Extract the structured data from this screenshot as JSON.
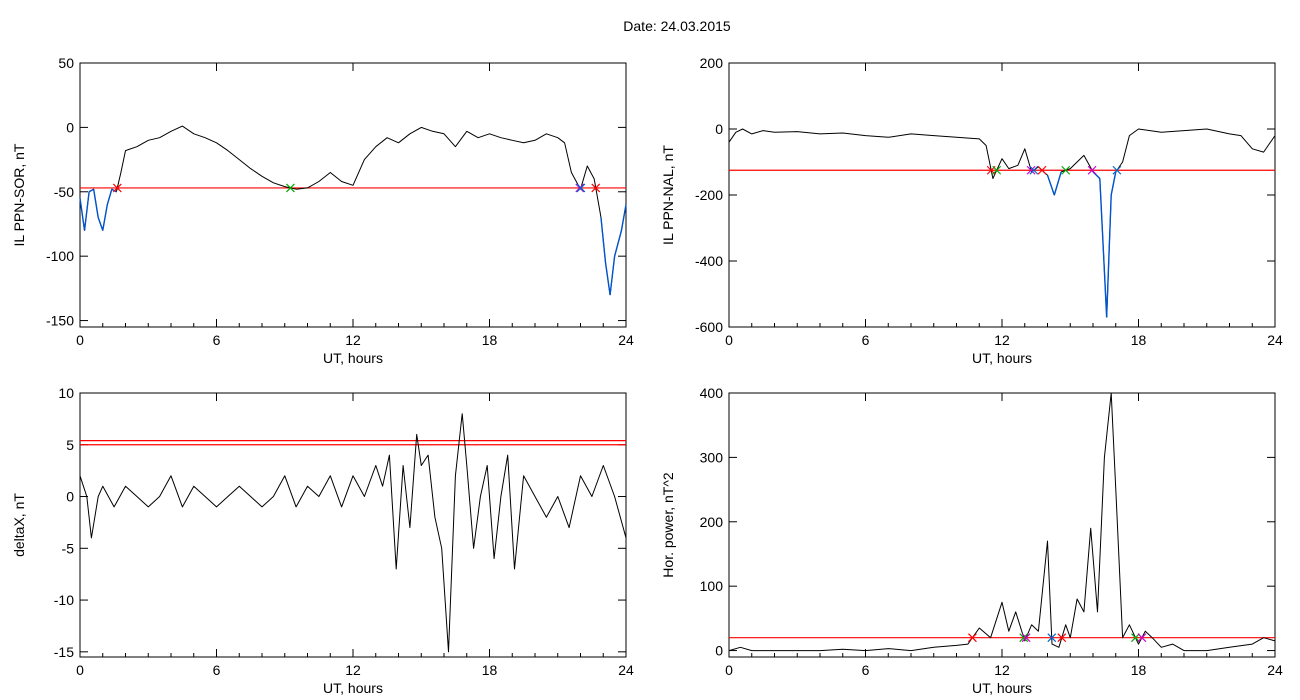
{
  "figure_title": "Date:  24.03.2015",
  "colors": {
    "trace": "#000000",
    "threshold": "#ff0000",
    "event": "#0055cc",
    "marker_red": "#ff0000",
    "marker_green": "#00aa00",
    "marker_magenta": "#cc00cc",
    "marker_blue": "#0066cc"
  },
  "chart_data": [
    {
      "id": "ppn_sor",
      "type": "line",
      "xlabel": "UT, hours",
      "ylabel": "IL PPN-SOR, nT",
      "xlim": [
        0,
        24
      ],
      "ylim": [
        -155,
        50
      ],
      "xticks": [
        "0",
        "6",
        "12",
        "18",
        "24"
      ],
      "yticks": [
        "50",
        "0",
        "-50",
        "-100",
        "-150"
      ],
      "ytick_values": [
        50,
        0,
        -50,
        -100,
        -150
      ],
      "threshold": -47,
      "series": [
        {
          "x": [
            0,
            0.2,
            0.4,
            0.6,
            0.8,
            1.0,
            1.2,
            1.4,
            1.6,
            1.8,
            2.0,
            2.5,
            3.0,
            3.5,
            4.0,
            4.5,
            5.0,
            5.5,
            6.0,
            6.5,
            7.0,
            7.5,
            8.0,
            8.5,
            9.0,
            9.5,
            10.0,
            10.5,
            11.0,
            11.5,
            12.0,
            12.5,
            13.0,
            13.5,
            14.0,
            14.5,
            15.0,
            15.5,
            16.0,
            16.5,
            17.0,
            17.5,
            18.0,
            18.5,
            19.0,
            19.5,
            20.0,
            20.5,
            21.0,
            21.3,
            21.6,
            22.0,
            22.3,
            22.6,
            22.9,
            23.1,
            23.3,
            23.5,
            23.8,
            24.0
          ],
          "y": [
            -55,
            -80,
            -50,
            -48,
            -70,
            -80,
            -60,
            -48,
            -50,
            -35,
            -18,
            -15,
            -10,
            -8,
            -3,
            1,
            -5,
            -8,
            -12,
            -18,
            -25,
            -32,
            -38,
            -43,
            -46,
            -48,
            -47,
            -42,
            -35,
            -42,
            -45,
            -25,
            -15,
            -8,
            -12,
            -5,
            0,
            -3,
            -5,
            -15,
            -3,
            -8,
            -5,
            -8,
            -10,
            -12,
            -10,
            -5,
            -8,
            -12,
            -35,
            -48,
            -30,
            -40,
            -70,
            -105,
            -130,
            -100,
            -80,
            -60
          ]
        }
      ]
    },
    {
      "id": "ppn_nal",
      "type": "line",
      "xlabel": "UT, hours",
      "ylabel": "IL PPN-NAL, nT",
      "xlim": [
        0,
        24
      ],
      "ylim": [
        -600,
        200
      ],
      "xticks": [
        "0",
        "6",
        "12",
        "18",
        "24"
      ],
      "yticks": [
        "200",
        "0",
        "-200",
        "-400",
        "-600"
      ],
      "ytick_values": [
        200,
        0,
        -200,
        -400,
        -600
      ],
      "threshold": -125,
      "series": [
        {
          "x": [
            0,
            0.3,
            0.6,
            1.0,
            1.5,
            2.0,
            3.0,
            4.0,
            5.0,
            6.0,
            7.0,
            8.0,
            9.0,
            10.0,
            11.0,
            11.3,
            11.6,
            12.0,
            12.3,
            12.7,
            13.0,
            13.3,
            13.6,
            14.0,
            14.3,
            14.6,
            15.0,
            15.3,
            15.6,
            16.0,
            16.3,
            16.6,
            16.8,
            17.0,
            17.3,
            17.6,
            18.0,
            19.0,
            20.0,
            21.0,
            22.0,
            22.5,
            23.0,
            23.5,
            24.0
          ],
          "y": [
            -40,
            -10,
            0,
            -15,
            -5,
            -10,
            -8,
            -15,
            -12,
            -20,
            -25,
            -15,
            -20,
            -25,
            -30,
            -50,
            -150,
            -90,
            -120,
            -110,
            -60,
            -130,
            -115,
            -140,
            -200,
            -130,
            -120,
            -100,
            -80,
            -130,
            -150,
            -570,
            -200,
            -130,
            -100,
            -20,
            0,
            -10,
            -5,
            0,
            -15,
            -20,
            -60,
            -70,
            -20
          ]
        }
      ]
    },
    {
      "id": "deltax",
      "type": "line",
      "xlabel": "UT, hours",
      "ylabel": "deltaX, nT",
      "xlim": [
        0,
        24
      ],
      "ylim": [
        -15.5,
        10
      ],
      "xticks": [
        "0",
        "6",
        "12",
        "18",
        "24"
      ],
      "yticks": [
        "10",
        "5",
        "0",
        "-5",
        "-10",
        "-15"
      ],
      "ytick_values": [
        10,
        5,
        0,
        -5,
        -10,
        -15
      ],
      "threshold_lines": [
        5.4,
        5.0
      ],
      "series": [
        {
          "x": [
            0,
            0.3,
            0.5,
            0.8,
            1.0,
            1.5,
            2.0,
            2.5,
            3.0,
            3.5,
            4.0,
            4.5,
            5.0,
            5.5,
            6.0,
            6.5,
            7.0,
            7.5,
            8.0,
            8.5,
            9.0,
            9.5,
            10.0,
            10.5,
            11.0,
            11.5,
            12.0,
            12.5,
            13.0,
            13.3,
            13.6,
            13.9,
            14.2,
            14.5,
            14.8,
            15.0,
            15.3,
            15.6,
            15.9,
            16.2,
            16.5,
            16.8,
            17.0,
            17.3,
            17.6,
            17.9,
            18.2,
            18.5,
            18.8,
            19.1,
            19.5,
            20.0,
            20.5,
            21.0,
            21.5,
            22.0,
            22.5,
            23.0,
            23.5,
            24.0
          ],
          "y": [
            2,
            0,
            -4,
            0,
            1,
            -1,
            1,
            0,
            -1,
            0,
            2,
            -1,
            1,
            0,
            -1,
            0,
            1,
            0,
            -1,
            0,
            2,
            -1,
            1,
            0,
            2,
            -1,
            2,
            0,
            3,
            1,
            4,
            -7,
            3,
            -3,
            6,
            3,
            4,
            -2,
            -5,
            -15,
            2,
            8,
            3,
            -5,
            0,
            3,
            -6,
            0,
            4,
            -7,
            2,
            0,
            -2,
            0,
            -3,
            2,
            0,
            3,
            0,
            -4
          ]
        }
      ]
    },
    {
      "id": "hor_power",
      "type": "line",
      "xlabel": "UT, hours",
      "ylabel": "Hor. power, nT^2",
      "xlim": [
        0,
        24
      ],
      "ylim": [
        -10,
        400
      ],
      "xticks": [
        "0",
        "6",
        "12",
        "18",
        "24"
      ],
      "yticks": [
        "400",
        "300",
        "200",
        "100",
        "0"
      ],
      "ytick_values": [
        400,
        300,
        200,
        100,
        0
      ],
      "threshold": 20,
      "series": [
        {
          "x": [
            0,
            0.5,
            1.0,
            2.0,
            3.0,
            4.0,
            5.0,
            6.0,
            7.0,
            8.0,
            9.0,
            10.0,
            10.5,
            11.0,
            11.5,
            12.0,
            12.3,
            12.6,
            13.0,
            13.3,
            13.6,
            14.0,
            14.2,
            14.5,
            14.8,
            15.0,
            15.3,
            15.6,
            15.9,
            16.2,
            16.5,
            16.8,
            17.0,
            17.3,
            17.6,
            18.0,
            18.3,
            18.6,
            19.0,
            19.5,
            20.0,
            21.0,
            22.0,
            23.0,
            23.5,
            24.0
          ],
          "y": [
            0,
            5,
            0,
            0,
            0,
            0,
            2,
            0,
            3,
            0,
            5,
            8,
            10,
            35,
            20,
            75,
            30,
            60,
            15,
            40,
            30,
            170,
            10,
            5,
            40,
            20,
            80,
            60,
            190,
            60,
            300,
            400,
            250,
            20,
            40,
            10,
            30,
            20,
            5,
            10,
            0,
            0,
            5,
            10,
            20,
            15
          ]
        }
      ]
    }
  ]
}
